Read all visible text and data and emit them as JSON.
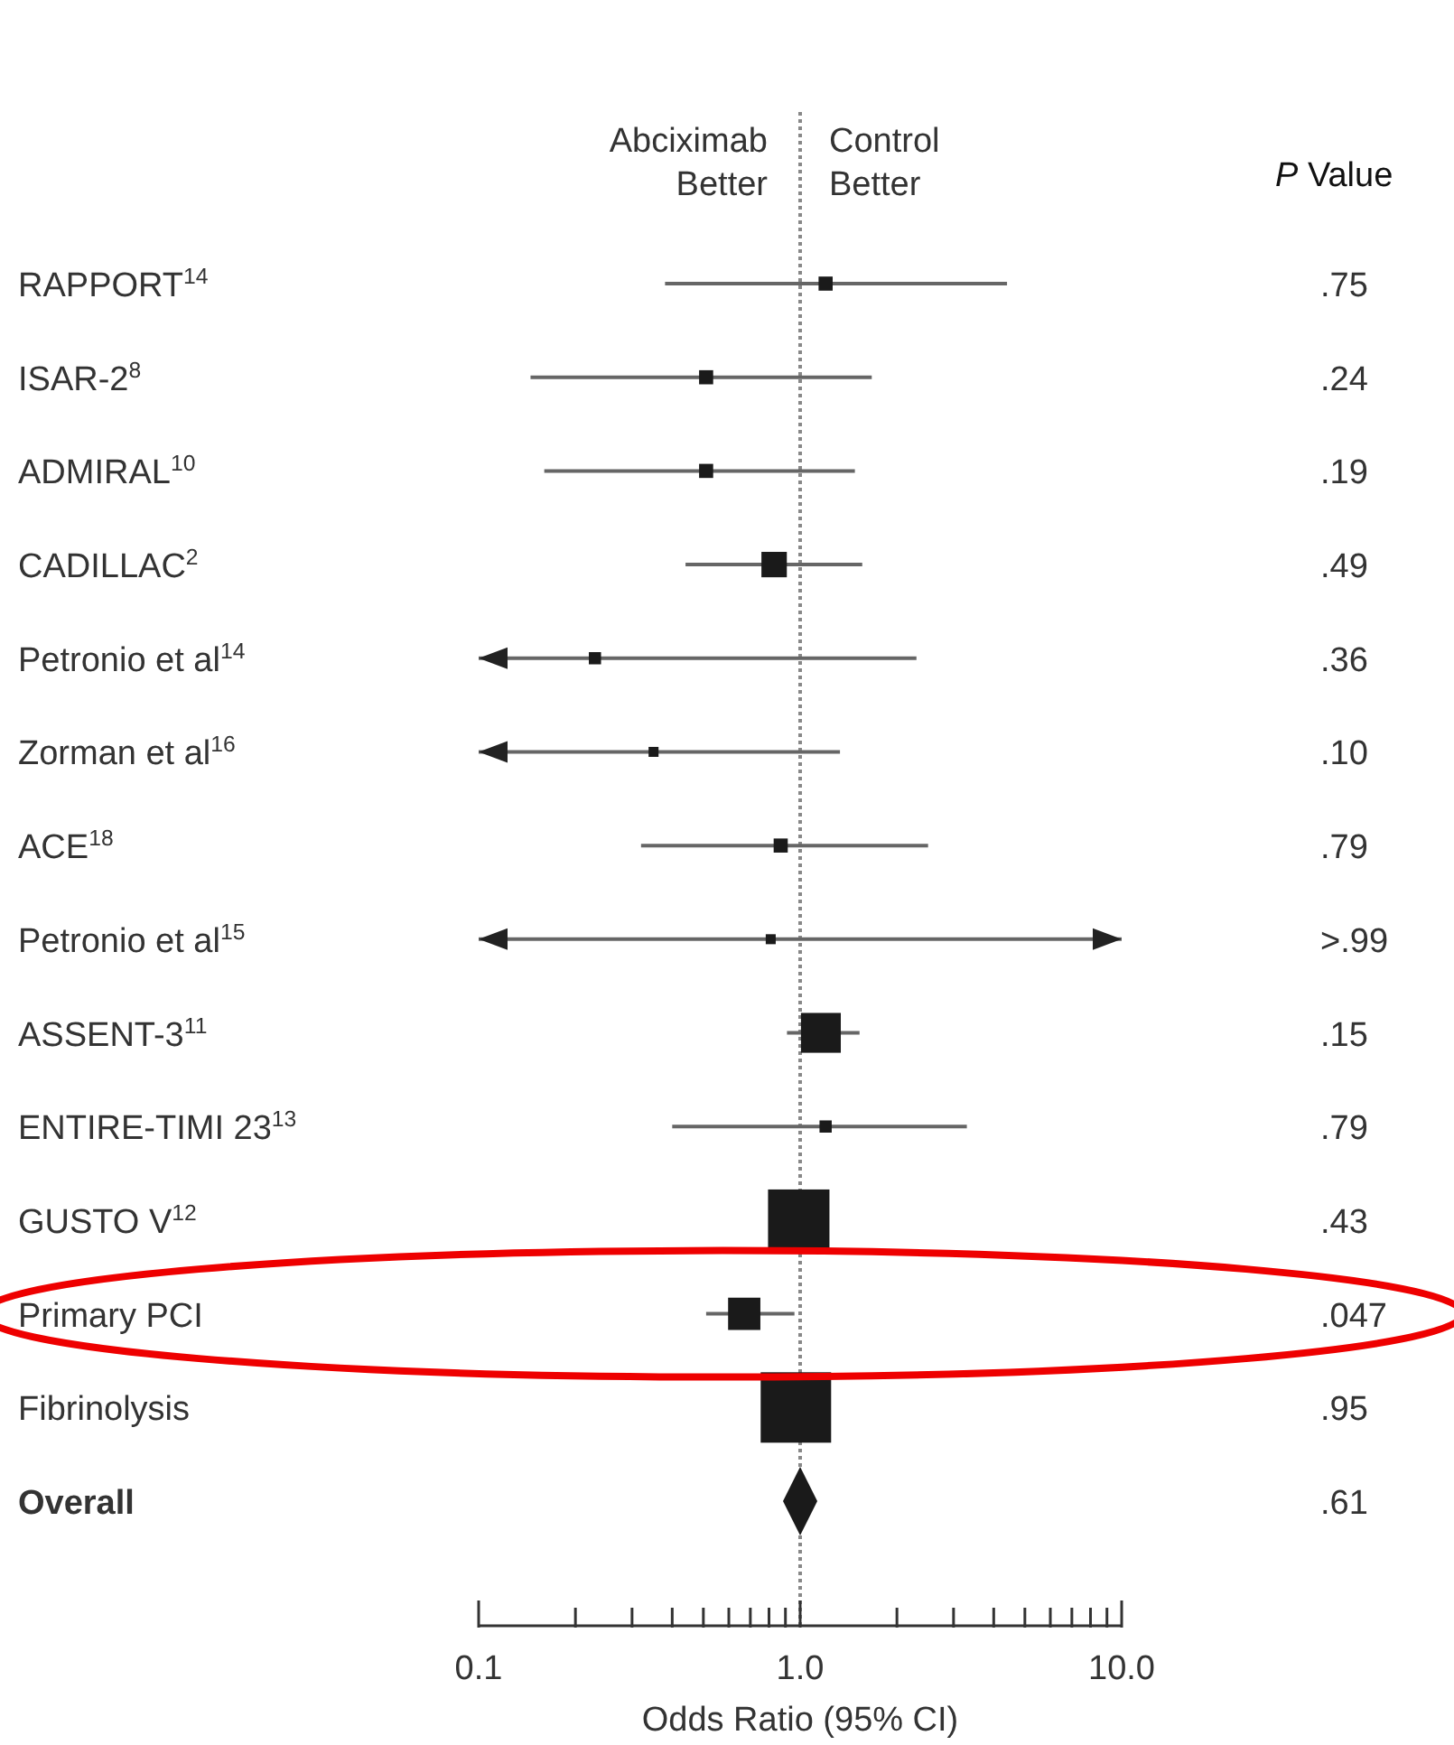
{
  "chart_data": {
    "type": "scatter",
    "orientation": "horizontal",
    "log": "x",
    "xlabel": "Odds Ratio (95% CI)",
    "categories": [
      "RAPPORT$^{14}$",
      "ISAR-2$^{8}$",
      "ADMIRAL$^{10}$",
      "CADILLAC$^{2}$",
      "Petronio et al$^{14}$",
      "Zorman et al$^{16}$",
      "ACE$^{18}$",
      "Petronio et al$^{15}$",
      "ASSENT-3$^{11}$",
      "ENTIRE-TIMI 23$^{13}$",
      "GUSTO V$^{12}$",
      "Primary PCI",
      "Fibrinolysis",
      "Overall"
    ],
    "series": [
      {
        "type": "bubble",
        "marker": "square",
        "color": "#1a1a1a",
        "values": [
          1.2,
          0.51,
          0.51,
          0.83,
          0.23,
          0.35,
          0.87,
          0.81,
          1.16,
          1.2,
          0.99,
          0.67,
          0.97,
          null
        ],
        "errors": [
          [
            0.38,
            4.4
          ],
          [
            0.145,
            1.67
          ],
          [
            0.16,
            1.48
          ],
          [
            0.44,
            1.56
          ],
          [
            0.1,
            2.3
          ],
          [
            0.1,
            1.33
          ],
          [
            0.32,
            2.5
          ],
          [
            0.1,
            10
          ],
          [
            0.91,
            1.53
          ],
          [
            0.4,
            3.3
          ],
          null,
          [
            0.51,
            0.96
          ],
          null,
          null
        ],
        "sizes": [
          0.04,
          0.04,
          0.04,
          0.13,
          0.03,
          0.02,
          0.04,
          0.02,
          0.32,
          0.03,
          0.76,
          0.21,
          1,
          null
        ]
      },
      {
        "type": "scatter",
        "marker": "diamond",
        "color": "#1a1a1a",
        "values": [
          null,
          null,
          null,
          null,
          null,
          null,
          null,
          null,
          null,
          null,
          null,
          null,
          null,
          1.0
        ]
      }
    ],
    "xlim": [
      0.1,
      10
    ],
    "xticks": [
      {
        "value": 0.1,
        "label": "0.1"
      },
      {
        "value": 0.2,
        "label": null
      },
      {
        "value": 0.3,
        "label": null
      },
      {
        "value": 0.4,
        "label": null
      },
      {
        "value": 0.5,
        "label": null
      },
      {
        "value": 0.6,
        "label": null
      },
      {
        "value": 0.7,
        "label": null
      },
      {
        "value": 0.8,
        "label": null
      },
      {
        "value": 0.9,
        "label": null
      },
      {
        "value": 1,
        "label": "1.0"
      },
      {
        "value": 2,
        "label": null
      },
      {
        "value": 3,
        "label": null
      },
      {
        "value": 4,
        "label": null
      },
      {
        "value": 5,
        "label": null
      },
      {
        "value": 6,
        "label": null
      },
      {
        "value": 7,
        "label": null
      },
      {
        "value": 8,
        "label": null
      },
      {
        "value": 9,
        "label": null
      },
      {
        "value": 10,
        "label": "10.0"
      }
    ],
    "ref_lines": [
      {
        "axis": "x",
        "value": 1,
        "line_style": "dotted",
        "color": "#888888"
      }
    ],
    "annotations": [
      "Abciximab Better",
      "Control Better",
      "P Value",
      ".75",
      ".24",
      ".19",
      ".49",
      ".36",
      ".10",
      ".79",
      ">.99",
      ".15",
      ".79",
      ".43",
      ".047",
      ".95",
      ".61"
    ]
  }
}
